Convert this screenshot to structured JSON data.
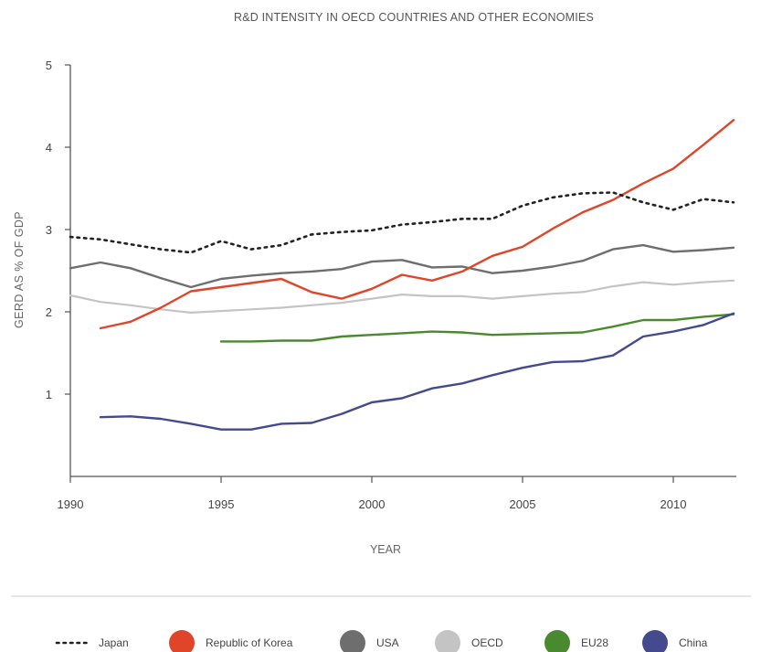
{
  "chart_data": {
    "type": "line",
    "title": "R&D INTENSITY IN OECD COUNTRIES AND OTHER ECONOMIES",
    "xlabel": "YEAR",
    "ylabel": "GERD AS % OF GDP",
    "xlim": [
      1990,
      2012
    ],
    "ylim": [
      0,
      5
    ],
    "x_ticks": [
      1990,
      1995,
      2000,
      2005,
      2010
    ],
    "x_tick_labels": [
      "1990",
      "1995",
      "2000",
      "2005",
      "2010"
    ],
    "y_ticks": [
      1,
      2,
      3,
      4,
      5
    ],
    "y_tick_labels": [
      "1",
      "2",
      "3",
      "4",
      "5"
    ],
    "grid": false,
    "legend_position": "bottom",
    "series": [
      {
        "name": "Japan",
        "color": "#222222",
        "style": "dotted",
        "x": [
          1990,
          1991,
          1992,
          1993,
          1994,
          1995,
          1996,
          1997,
          1998,
          1999,
          2000,
          2001,
          2002,
          2003,
          2004,
          2005,
          2006,
          2007,
          2008,
          2009,
          2010,
          2011,
          2012
        ],
        "values": [
          2.91,
          2.88,
          2.82,
          2.76,
          2.72,
          2.86,
          2.76,
          2.81,
          2.94,
          2.97,
          2.99,
          3.06,
          3.09,
          3.13,
          3.13,
          3.29,
          3.39,
          3.44,
          3.45,
          3.33,
          3.24,
          3.37,
          3.33
        ]
      },
      {
        "name": "Republic of Korea",
        "color": "#e0452a",
        "style": "solid",
        "x": [
          1991,
          1992,
          1993,
          1994,
          1995,
          1996,
          1997,
          1998,
          1999,
          2000,
          2001,
          2002,
          2003,
          2004,
          2005,
          2006,
          2007,
          2008,
          2009,
          2010,
          2011,
          2012
        ],
        "values": [
          1.8,
          1.88,
          2.05,
          2.25,
          2.3,
          2.35,
          2.4,
          2.24,
          2.16,
          2.28,
          2.45,
          2.38,
          2.49,
          2.68,
          2.79,
          3.01,
          3.21,
          3.36,
          3.56,
          3.74,
          4.03,
          4.33
        ]
      },
      {
        "name": "USA",
        "color": "#6e6e6e",
        "style": "solid",
        "x": [
          1990,
          1991,
          1992,
          1993,
          1994,
          1995,
          1996,
          1997,
          1998,
          1999,
          2000,
          2001,
          2002,
          2003,
          2004,
          2005,
          2006,
          2007,
          2008,
          2009,
          2010,
          2011,
          2012
        ],
        "values": [
          2.53,
          2.6,
          2.53,
          2.41,
          2.3,
          2.4,
          2.44,
          2.47,
          2.49,
          2.52,
          2.61,
          2.63,
          2.54,
          2.55,
          2.47,
          2.5,
          2.55,
          2.62,
          2.76,
          2.81,
          2.73,
          2.75,
          2.78
        ]
      },
      {
        "name": "OECD",
        "color": "#c4c4c4",
        "style": "solid",
        "x": [
          1990,
          1991,
          1992,
          1993,
          1994,
          1995,
          1996,
          1997,
          1998,
          1999,
          2000,
          2001,
          2002,
          2003,
          2004,
          2005,
          2006,
          2007,
          2008,
          2009,
          2010,
          2011,
          2012
        ],
        "values": [
          2.2,
          2.12,
          2.08,
          2.03,
          1.99,
          2.01,
          2.03,
          2.05,
          2.08,
          2.11,
          2.16,
          2.21,
          2.19,
          2.19,
          2.16,
          2.19,
          2.22,
          2.24,
          2.31,
          2.36,
          2.33,
          2.36,
          2.38
        ]
      },
      {
        "name": "EU28",
        "color": "#4a8a2e",
        "style": "solid",
        "x": [
          1995,
          1996,
          1997,
          1998,
          1999,
          2000,
          2001,
          2002,
          2003,
          2004,
          2005,
          2006,
          2007,
          2008,
          2009,
          2010,
          2011,
          2012
        ],
        "values": [
          1.64,
          1.64,
          1.65,
          1.65,
          1.7,
          1.72,
          1.74,
          1.76,
          1.75,
          1.72,
          1.73,
          1.74,
          1.75,
          1.82,
          1.9,
          1.9,
          1.94,
          1.97
        ]
      },
      {
        "name": "China",
        "color": "#454a8f",
        "style": "solid",
        "x": [
          1991,
          1992,
          1993,
          1994,
          1995,
          1996,
          1997,
          1998,
          1999,
          2000,
          2001,
          2002,
          2003,
          2004,
          2005,
          2006,
          2007,
          2008,
          2009,
          2010,
          2011,
          2012
        ],
        "values": [
          0.72,
          0.73,
          0.7,
          0.64,
          0.57,
          0.57,
          0.64,
          0.65,
          0.76,
          0.9,
          0.95,
          1.07,
          1.13,
          1.23,
          1.32,
          1.39,
          1.4,
          1.47,
          1.7,
          1.76,
          1.84,
          1.98
        ]
      }
    ]
  }
}
